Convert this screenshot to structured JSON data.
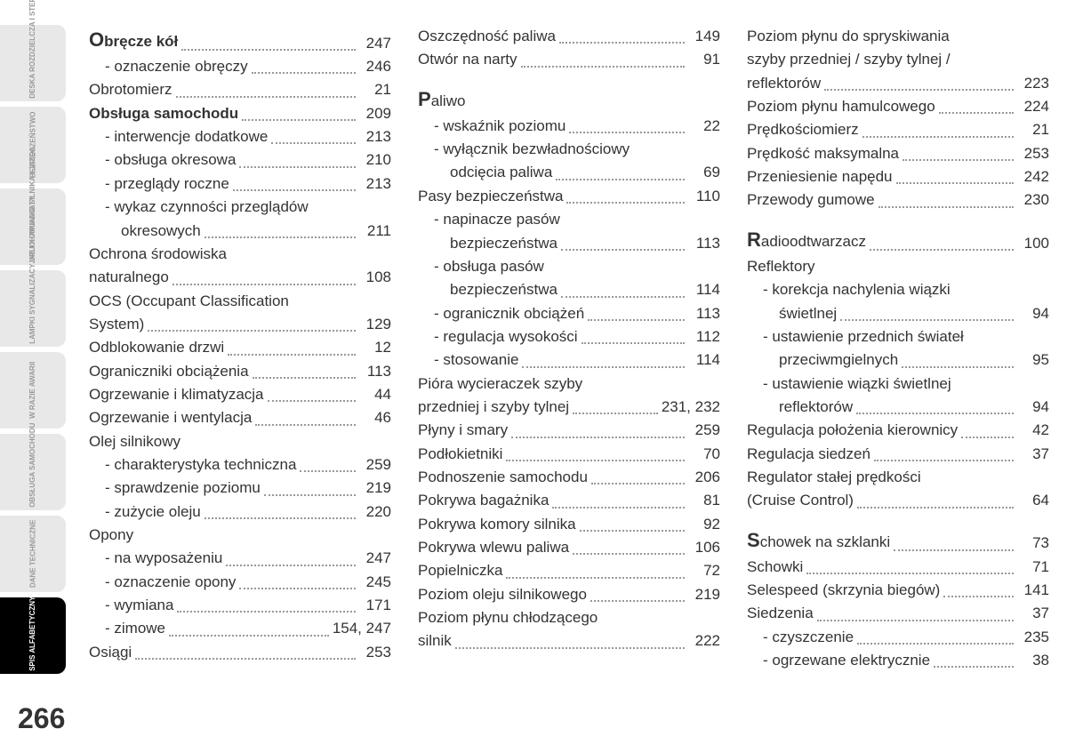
{
  "page_number": "266",
  "sidebar_tabs": [
    {
      "label": "DESKA ROZDZIELCZA I STEROWANIE",
      "active": false
    },
    {
      "label": "BEZPIECZEŃSTWO",
      "active": false
    },
    {
      "label": "URUCHAMIANIE SILNIKA I JAZDA",
      "active": false
    },
    {
      "label": "LAMPKI SYGNALIZACYJNE I KOMUNIKATY",
      "active": false
    },
    {
      "label": "W RAZIE AWARII",
      "active": false
    },
    {
      "label": "OBSŁUGA SAMOCHODU",
      "active": false
    },
    {
      "label": "DANE TECHNICZNE",
      "active": false
    },
    {
      "label": "SPIS ALFABETYCZNY",
      "active": true
    }
  ],
  "columns": [
    [
      {
        "label": "bręcze kół",
        "page": "247",
        "dropCap": "O",
        "bold": true
      },
      {
        "label": "- oznaczenie obręczy",
        "page": "246",
        "sub": true
      },
      {
        "label": "Obrotomierz",
        "page": "21"
      },
      {
        "label": "Obsługa samochodu",
        "page": "209",
        "bold": true
      },
      {
        "label": "- interwencje dodatkowe",
        "page": "213",
        "sub": true
      },
      {
        "label": "- obsługa okresowa",
        "page": "210",
        "sub": true
      },
      {
        "label": "- przeglądy roczne",
        "page": "213",
        "sub": true
      },
      {
        "label": "- wykaz czynności przeglądów",
        "noPage": true,
        "sub": true
      },
      {
        "label": "okresowych",
        "page": "211",
        "continuation": true,
        "sub": true
      },
      {
        "label": "Ochrona środowiska",
        "noPage": true
      },
      {
        "label": "naturalnego",
        "page": "108"
      },
      {
        "label": "OCS (Occupant Classification",
        "noPage": true
      },
      {
        "label": "System)",
        "page": "129"
      },
      {
        "label": "Odblokowanie drzwi",
        "page": "12"
      },
      {
        "label": "Ograniczniki obciążenia",
        "page": "113"
      },
      {
        "label": "Ogrzewanie i klimatyzacja",
        "page": "44"
      },
      {
        "label": "Ogrzewanie i wentylacja",
        "page": "46"
      },
      {
        "label": "Olej silnikowy",
        "noPage": true
      },
      {
        "label": "- charakterystyka techniczna",
        "page": "259",
        "sub": true
      },
      {
        "label": "- sprawdzenie poziomu",
        "page": "219",
        "sub": true
      },
      {
        "label": "- zużycie oleju",
        "page": "220",
        "sub": true
      },
      {
        "label": "Opony",
        "noPage": true
      },
      {
        "label": "- na wyposażeniu",
        "page": "247",
        "sub": true
      },
      {
        "label": "- oznaczenie opony",
        "page": "245",
        "sub": true
      },
      {
        "label": "- wymiana",
        "page": "171",
        "sub": true
      },
      {
        "label": "- zimowe",
        "page": "154, 247",
        "sub": true
      },
      {
        "label": "Osiągi",
        "page": "253"
      }
    ],
    [
      {
        "label": "Oszczędność paliwa",
        "page": "149"
      },
      {
        "label": "Otwór na narty",
        "page": "91"
      },
      {
        "label": "aliwo",
        "noPage": true,
        "dropCap": "P",
        "sectionStart": true
      },
      {
        "label": "- wskaźnik poziomu",
        "page": "22",
        "sub": true
      },
      {
        "label": "- wyłącznik bezwładnościowy",
        "noPage": true,
        "sub": true
      },
      {
        "label": "odcięcia paliwa",
        "page": "69",
        "continuation": true,
        "sub": true
      },
      {
        "label": "Pasy bezpieczeństwa",
        "page": "110"
      },
      {
        "label": "- napinacze pasów",
        "noPage": true,
        "sub": true
      },
      {
        "label": "bezpieczeństwa",
        "page": "113",
        "continuation": true,
        "sub": true
      },
      {
        "label": "- obsługa pasów",
        "noPage": true,
        "sub": true
      },
      {
        "label": "bezpieczeństwa",
        "page": "114",
        "continuation": true,
        "sub": true
      },
      {
        "label": "- ogranicznik obciążeń",
        "page": "113",
        "sub": true
      },
      {
        "label": "- regulacja wysokości",
        "page": "112",
        "sub": true
      },
      {
        "label": "- stosowanie",
        "page": "114",
        "sub": true
      },
      {
        "label": "Pióra wycieraczek szyby",
        "noPage": true
      },
      {
        "label": "przedniej i szyby tylnej",
        "page": "231, 232"
      },
      {
        "label": "Płyny i smary",
        "page": "259"
      },
      {
        "label": "Podłokietniki",
        "page": "70"
      },
      {
        "label": "Podnoszenie samochodu",
        "page": "206"
      },
      {
        "label": "Pokrywa bagażnika",
        "page": "81"
      },
      {
        "label": "Pokrywa komory silnika",
        "page": "92"
      },
      {
        "label": "Pokrywa wlewu paliwa",
        "page": "106"
      },
      {
        "label": "Popielniczka",
        "page": "72"
      },
      {
        "label": "Poziom oleju silnikowego",
        "page": "219"
      },
      {
        "label": "Poziom płynu chłodzącego",
        "noPage": true
      },
      {
        "label": "silnik",
        "page": "222"
      }
    ],
    [
      {
        "label": "Poziom płynu do spryskiwania",
        "noPage": true
      },
      {
        "label": "szyby przedniej / szyby tylnej /",
        "noPage": true
      },
      {
        "label": "reflektorów",
        "page": "223"
      },
      {
        "label": "Poziom płynu hamulcowego",
        "page": "224"
      },
      {
        "label": "Prędkościomierz",
        "page": "21"
      },
      {
        "label": "Prędkość maksymalna",
        "page": "253"
      },
      {
        "label": "Przeniesienie napędu",
        "page": "242"
      },
      {
        "label": "Przewody gumowe",
        "page": "230"
      },
      {
        "label": "adioodtwarzacz",
        "page": "100",
        "dropCap": "R",
        "sectionStart": true
      },
      {
        "label": "Reflektory",
        "noPage": true
      },
      {
        "label": "- korekcja nachylenia wiązki",
        "noPage": true,
        "sub": true
      },
      {
        "label": "świetlnej",
        "page": "94",
        "continuation": true,
        "sub": true
      },
      {
        "label": "- ustawienie przednich świateł",
        "noPage": true,
        "sub": true
      },
      {
        "label": "przeciwmgielnych",
        "page": "95",
        "continuation": true,
        "sub": true
      },
      {
        "label": "- ustawienie wiązki świetlnej",
        "noPage": true,
        "sub": true
      },
      {
        "label": "reflektorów",
        "page": "94",
        "continuation": true,
        "sub": true
      },
      {
        "label": "Regulacja położenia kierownicy",
        "page": "42"
      },
      {
        "label": "Regulacja siedzeń",
        "page": "37"
      },
      {
        "label": "Regulator stałej prędkości",
        "noPage": true
      },
      {
        "label": "(Cruise Control)",
        "page": "64"
      },
      {
        "label": "chowek na szklanki",
        "page": "73",
        "dropCap": "S",
        "sectionStart": true
      },
      {
        "label": "Schowki",
        "page": "71"
      },
      {
        "label": "Selespeed (skrzynia biegów)",
        "page": "141"
      },
      {
        "label": "Siedzenia",
        "page": "37"
      },
      {
        "label": "- czyszczenie",
        "page": "235",
        "sub": true
      },
      {
        "label": "- ogrzewane elektrycznie",
        "page": "38",
        "sub": true
      }
    ]
  ]
}
